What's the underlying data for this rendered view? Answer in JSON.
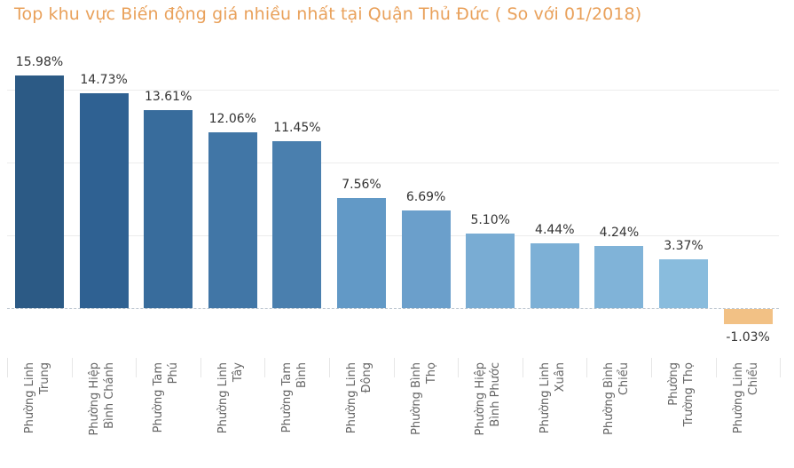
{
  "title": "Top  khu vực Biến động giá nhiều nhất tại  Quận Thủ Đức ( So với 01/2018)",
  "colors": {
    "title": "#e9a15b",
    "negative": "#f2c185",
    "bar_gradient": [
      "#2c5a85",
      "#2f6192",
      "#386c9c",
      "#4176a6",
      "#4a7fae",
      "#6299c6",
      "#6b9fcb",
      "#79acd3",
      "#7db0d6",
      "#80b3d8",
      "#89bcdd"
    ]
  },
  "chart_data": {
    "type": "bar",
    "title": "Top  khu vực Biến động giá nhiều nhất tại  Quận Thủ Đức ( So với 01/2018)",
    "xlabel": "",
    "ylabel": "",
    "categories": [
      "Phường Linh Trung",
      "Phường Hiệp Bình Chánh",
      "Phường Tam Phú",
      "Phường Linh Tây",
      "Phường Tam Bình",
      "Phường Linh Đông",
      "Phường Bình Thọ",
      "Phường Hiệp Bình Phước",
      "Phường Linh Xuân",
      "Phường Bình Chiểu",
      "Phường Trường Thọ",
      "Phường Linh Chiểu"
    ],
    "category_lines": [
      [
        "Phường Linh",
        "Trung"
      ],
      [
        "Phường Hiệp",
        "Bình Chánh"
      ],
      [
        "Phường Tam",
        "Phú"
      ],
      [
        "Phường Linh",
        "Tây"
      ],
      [
        "Phường Tam",
        "Bình"
      ],
      [
        "Phường Linh",
        "Đông"
      ],
      [
        "Phường Bình",
        "Thọ"
      ],
      [
        "Phường Hiệp",
        "Bình Phước"
      ],
      [
        "Phường Linh",
        "Xuân"
      ],
      [
        "Phường Bình",
        "Chiểu"
      ],
      [
        "Phường",
        "Trường Thọ"
      ],
      [
        "Phường Linh",
        "Chiểu"
      ]
    ],
    "values": [
      15.98,
      14.73,
      13.61,
      12.06,
      11.45,
      7.56,
      6.69,
      5.1,
      4.44,
      4.24,
      3.37,
      -1.03
    ],
    "labels": [
      "15.98%",
      "14.73%",
      "13.61%",
      "12.06%",
      "11.45%",
      "7.56%",
      "6.69%",
      "5.10%",
      "4.44%",
      "4.24%",
      "3.37%",
      "-1.03%"
    ],
    "unit": "%",
    "ylim": [
      -2,
      17
    ],
    "gridlines": [
      5,
      10,
      15
    ],
    "grid": true,
    "zero_line": "dashed",
    "legend": "none"
  }
}
